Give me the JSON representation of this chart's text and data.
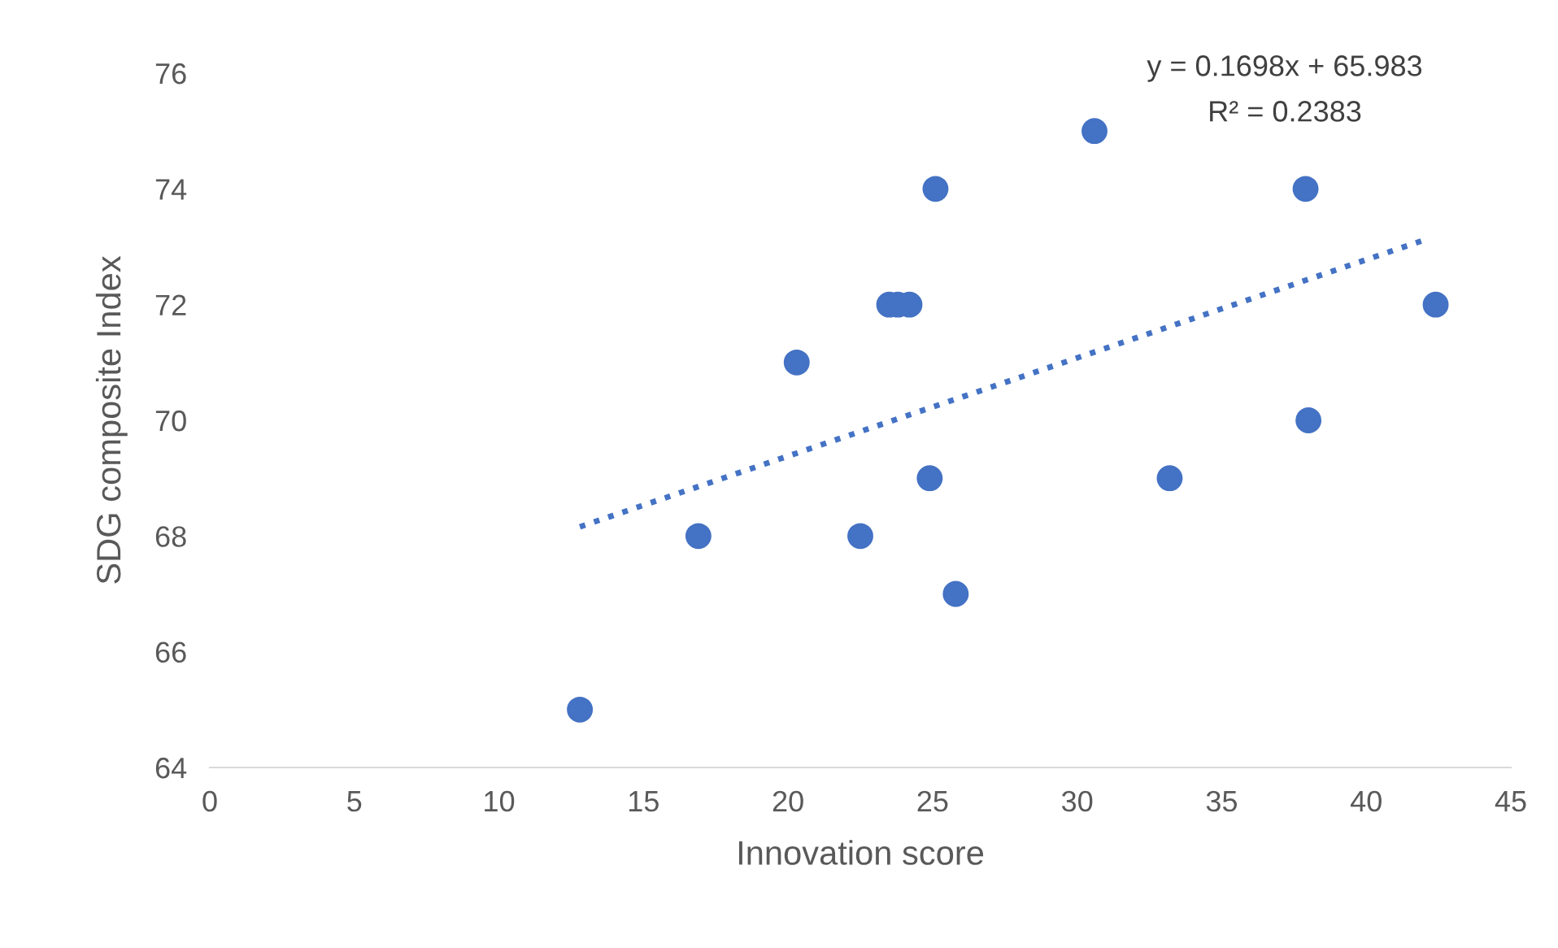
{
  "chart_data": {
    "type": "scatter",
    "xlabel": "Innovation score",
    "ylabel": "SDG composite Index",
    "annotations": [
      "y = 0.1698x + 65.983",
      "R² = 0.2383"
    ],
    "series": [
      {
        "color": "#4472c4",
        "marker": "circle",
        "x": [
          12.8,
          16.9,
          20.3,
          22.5,
          23.5,
          23.8,
          24.2,
          24.9,
          25.1,
          25.8,
          30.6,
          33.2,
          37.9,
          38.0,
          42.4
        ],
        "values": [
          65,
          68,
          71,
          68,
          72,
          72,
          72,
          69,
          74,
          67,
          75,
          69,
          74,
          70,
          72
        ]
      },
      {
        "type": "line",
        "color": "#4472c4",
        "line_style": "dotted",
        "x": [
          12.8,
          42.2
        ],
        "values": [
          68.16,
          73.15
        ]
      }
    ],
    "xlim": [
      0,
      45
    ],
    "xticks": [
      0,
      5,
      10,
      15,
      20,
      25,
      30,
      35,
      40,
      45
    ],
    "ylim": [
      64,
      76
    ],
    "yticks": [
      64,
      66,
      68,
      70,
      72,
      74,
      76
    ],
    "grid": false,
    "legend": false
  }
}
